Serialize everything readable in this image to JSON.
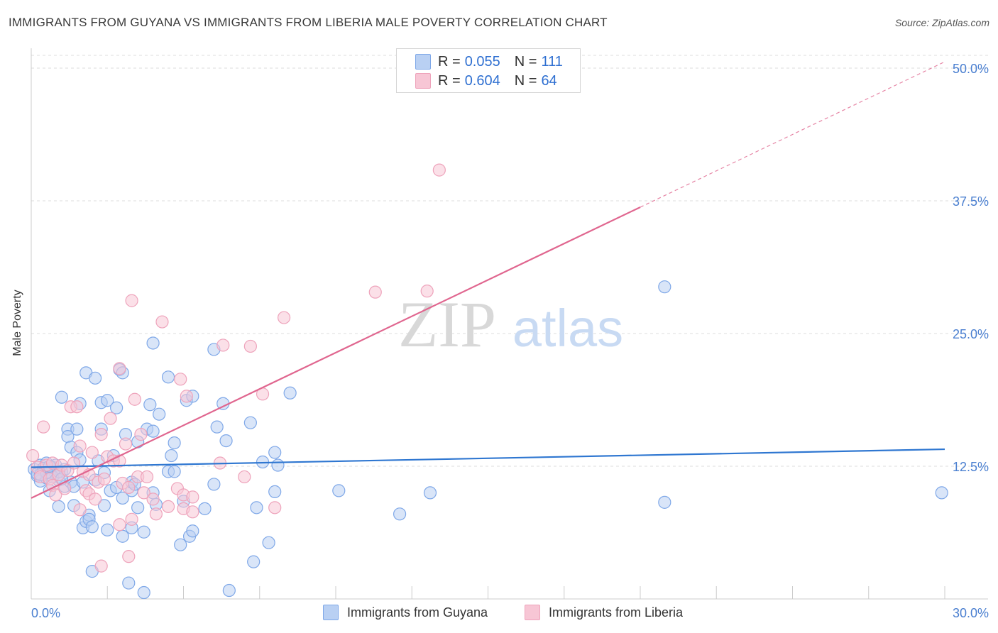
{
  "title": "IMMIGRANTS FROM GUYANA VS IMMIGRANTS FROM LIBERIA MALE POVERTY CORRELATION CHART",
  "source": "Source: ZipAtlas.com",
  "watermark": {
    "zip": "ZIP",
    "atlas": "atlas"
  },
  "legend_top": [
    {
      "r_label": "R =",
      "r_value": "0.055",
      "n_label": "N =",
      "n_value": "111"
    },
    {
      "r_label": "R =",
      "r_value": "0.604",
      "n_label": "N =",
      "n_value": "64"
    }
  ],
  "legend_bottom": [
    {
      "label": "Immigrants from Guyana"
    },
    {
      "label": "Immigrants from Liberia"
    }
  ],
  "chart_data": {
    "type": "scatter",
    "title": "IMMIGRANTS FROM GUYANA VS IMMIGRANTS FROM LIBERIA MALE POVERTY CORRELATION CHART",
    "xlabel": "",
    "ylabel": "Male Poverty",
    "xlim": [
      0,
      30
    ],
    "ylim": [
      0,
      50
    ],
    "x_tick_labels": [
      {
        "value": 0,
        "label": "0.0%"
      },
      {
        "value": 30,
        "label": "30.0%"
      }
    ],
    "y_tick_labels": [
      {
        "value": 12.5,
        "label": "12.5%"
      },
      {
        "value": 25,
        "label": "25.0%"
      },
      {
        "value": 37.5,
        "label": "37.5%"
      },
      {
        "value": 50,
        "label": "50.0%"
      }
    ],
    "grid": true,
    "series": [
      {
        "name": "Immigrants from Guyana",
        "color": "#7fa8e8",
        "fill": "#b9d0f3",
        "line_color": "#2f77d1",
        "r": 0.055,
        "n": 111,
        "trend": {
          "x": [
            0,
            30
          ],
          "y": [
            12.4,
            14.1
          ],
          "dashed_after": null
        },
        "points": [
          [
            0.1,
            12.2
          ],
          [
            0.2,
            11.6
          ],
          [
            0.3,
            12.6
          ],
          [
            0.3,
            11.1
          ],
          [
            0.4,
            12.1
          ],
          [
            0.5,
            11.4
          ],
          [
            0.5,
            12.8
          ],
          [
            0.6,
            11.9
          ],
          [
            0.6,
            10.2
          ],
          [
            0.7,
            12.4
          ],
          [
            0.8,
            11.8
          ],
          [
            0.8,
            12.6
          ],
          [
            0.9,
            11.2
          ],
          [
            0.9,
            8.7
          ],
          [
            1.0,
            12.0
          ],
          [
            1.0,
            19.0
          ],
          [
            1.1,
            12.2
          ],
          [
            1.1,
            10.6
          ],
          [
            1.2,
            16.0
          ],
          [
            1.2,
            15.3
          ],
          [
            1.3,
            11.0
          ],
          [
            1.3,
            14.3
          ],
          [
            1.4,
            8.8
          ],
          [
            1.4,
            10.6
          ],
          [
            1.5,
            13.8
          ],
          [
            1.5,
            16.0
          ],
          [
            1.6,
            18.4
          ],
          [
            1.6,
            13.1
          ],
          [
            1.7,
            6.7
          ],
          [
            1.7,
            11.0
          ],
          [
            1.8,
            7.3
          ],
          [
            1.8,
            21.3
          ],
          [
            1.9,
            7.9
          ],
          [
            1.9,
            7.5
          ],
          [
            2.0,
            6.8
          ],
          [
            2.0,
            2.6
          ],
          [
            2.1,
            20.8
          ],
          [
            2.1,
            11.2
          ],
          [
            2.2,
            13.0
          ],
          [
            2.3,
            16.0
          ],
          [
            2.3,
            18.5
          ],
          [
            2.4,
            8.8
          ],
          [
            2.4,
            11.9
          ],
          [
            2.5,
            18.7
          ],
          [
            2.5,
            6.5
          ],
          [
            2.6,
            10.2
          ],
          [
            2.7,
            13.5
          ],
          [
            2.8,
            18.0
          ],
          [
            2.8,
            10.5
          ],
          [
            2.9,
            21.6
          ],
          [
            3.0,
            21.3
          ],
          [
            3.0,
            9.5
          ],
          [
            3.0,
            5.9
          ],
          [
            3.1,
            15.5
          ],
          [
            3.2,
            1.5
          ],
          [
            3.3,
            10.2
          ],
          [
            3.3,
            11.0
          ],
          [
            3.3,
            6.7
          ],
          [
            3.4,
            10.8
          ],
          [
            3.5,
            14.8
          ],
          [
            3.5,
            8.6
          ],
          [
            3.7,
            0.6
          ],
          [
            3.7,
            6.3
          ],
          [
            3.8,
            16.0
          ],
          [
            3.9,
            18.3
          ],
          [
            4.0,
            24.1
          ],
          [
            4.0,
            10.0
          ],
          [
            4.0,
            15.8
          ],
          [
            4.1,
            8.9
          ],
          [
            4.2,
            17.4
          ],
          [
            4.5,
            20.9
          ],
          [
            4.5,
            12.0
          ],
          [
            4.6,
            13.5
          ],
          [
            4.7,
            12.0
          ],
          [
            4.7,
            14.7
          ],
          [
            4.9,
            5.1
          ],
          [
            5.0,
            9.2
          ],
          [
            5.1,
            18.7
          ],
          [
            5.2,
            5.9
          ],
          [
            5.3,
            19.1
          ],
          [
            5.3,
            6.4
          ],
          [
            5.7,
            8.5
          ],
          [
            6.0,
            23.5
          ],
          [
            6.0,
            10.8
          ],
          [
            6.1,
            16.2
          ],
          [
            6.3,
            18.4
          ],
          [
            6.4,
            14.9
          ],
          [
            6.5,
            0.8
          ],
          [
            7.2,
            16.6
          ],
          [
            7.3,
            3.5
          ],
          [
            7.4,
            8.6
          ],
          [
            7.6,
            12.9
          ],
          [
            7.8,
            5.3
          ],
          [
            8.0,
            13.8
          ],
          [
            8.0,
            10.1
          ],
          [
            8.1,
            12.6
          ],
          [
            8.5,
            19.4
          ],
          [
            10.1,
            10.2
          ],
          [
            12.1,
            8.0
          ],
          [
            13.1,
            10.0
          ],
          [
            20.8,
            9.1
          ],
          [
            29.9,
            10.0
          ],
          [
            20.8,
            29.4
          ],
          [
            0.2,
            11.8
          ],
          [
            0.4,
            12.3
          ],
          [
            0.7,
            11.5
          ],
          [
            0.9,
            12.0
          ],
          [
            1.0,
            11.3
          ],
          [
            0.5,
            11.9
          ],
          [
            0.6,
            12.5
          ],
          [
            0.3,
            11.7
          ]
        ]
      },
      {
        "name": "Immigrants from Liberia",
        "color": "#eea3bb",
        "fill": "#f7c6d5",
        "line_color": "#e0668f",
        "r": 0.604,
        "n": 64,
        "trend": {
          "x": [
            0,
            30
          ],
          "y": [
            9.5,
            50.6
          ],
          "dashed_after": 20.0
        },
        "points": [
          [
            0.05,
            13.5
          ],
          [
            0.2,
            12.4
          ],
          [
            0.3,
            11.5
          ],
          [
            0.4,
            16.2
          ],
          [
            0.5,
            12.6
          ],
          [
            0.6,
            11.3
          ],
          [
            0.7,
            12.8
          ],
          [
            0.7,
            10.7
          ],
          [
            0.8,
            9.8
          ],
          [
            0.9,
            11.7
          ],
          [
            1.0,
            12.6
          ],
          [
            1.1,
            10.4
          ],
          [
            1.2,
            12.1
          ],
          [
            1.3,
            18.1
          ],
          [
            1.4,
            12.8
          ],
          [
            1.5,
            18.1
          ],
          [
            1.6,
            8.4
          ],
          [
            1.6,
            14.4
          ],
          [
            1.7,
            12.0
          ],
          [
            1.8,
            10.2
          ],
          [
            1.9,
            11.7
          ],
          [
            1.9,
            9.9
          ],
          [
            2.0,
            13.8
          ],
          [
            2.1,
            9.4
          ],
          [
            2.2,
            11.0
          ],
          [
            2.3,
            3.1
          ],
          [
            2.3,
            15.5
          ],
          [
            2.4,
            11.3
          ],
          [
            2.5,
            13.4
          ],
          [
            2.6,
            17.0
          ],
          [
            2.7,
            13.0
          ],
          [
            2.9,
            21.7
          ],
          [
            2.9,
            13.0
          ],
          [
            2.9,
            7.0
          ],
          [
            3.0,
            10.9
          ],
          [
            3.1,
            14.6
          ],
          [
            3.2,
            10.5
          ],
          [
            3.2,
            4.0
          ],
          [
            3.3,
            28.1
          ],
          [
            3.3,
            7.5
          ],
          [
            3.4,
            18.8
          ],
          [
            3.5,
            11.5
          ],
          [
            3.6,
            15.5
          ],
          [
            3.7,
            10.0
          ],
          [
            3.8,
            11.5
          ],
          [
            4.0,
            9.4
          ],
          [
            4.1,
            8.0
          ],
          [
            4.3,
            26.1
          ],
          [
            4.5,
            8.7
          ],
          [
            4.8,
            10.4
          ],
          [
            4.9,
            20.7
          ],
          [
            5.0,
            8.5
          ],
          [
            5.0,
            9.8
          ],
          [
            5.1,
            19.1
          ],
          [
            5.3,
            9.6
          ],
          [
            5.3,
            8.2
          ],
          [
            6.2,
            12.8
          ],
          [
            6.3,
            23.9
          ],
          [
            7.0,
            11.5
          ],
          [
            7.2,
            23.8
          ],
          [
            7.6,
            19.3
          ],
          [
            8.0,
            8.6
          ],
          [
            8.3,
            26.5
          ],
          [
            11.3,
            28.9
          ]
        ],
        "extra_points": [
          [
            13.0,
            29.0
          ],
          [
            13.4,
            40.4
          ]
        ]
      }
    ],
    "legend_position": "top-center",
    "bottom_legend": "bottom-center"
  }
}
